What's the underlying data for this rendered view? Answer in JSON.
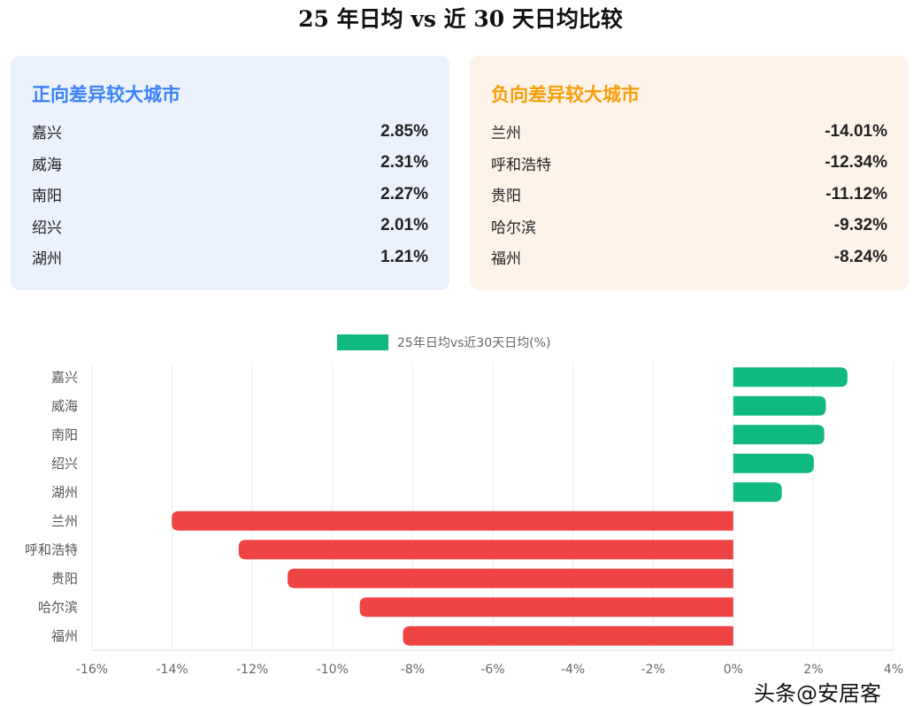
{
  "title": "25 年日均 vs 近 30 天日均比较",
  "positive_card": {
    "title": "正向差异较大城市",
    "items": [
      {
        "city": "嘉兴",
        "value": "2.85%"
      },
      {
        "city": "威海",
        "value": "2.31%"
      },
      {
        "city": "南阳",
        "value": "2.27%"
      },
      {
        "city": "绍兴",
        "value": "2.01%"
      },
      {
        "city": "湖州",
        "value": "1.21%"
      }
    ]
  },
  "negative_card": {
    "title": "负向差异较大城市",
    "items": [
      {
        "city": "兰州",
        "value": "-14.01%"
      },
      {
        "city": "呼和浩特",
        "value": "-12.34%"
      },
      {
        "city": "贵阳",
        "value": "-11.12%"
      },
      {
        "city": "哈尔滨",
        "value": "-9.32%"
      },
      {
        "city": "福州",
        "value": "-8.24%"
      }
    ]
  },
  "chart_data": {
    "type": "bar",
    "orientation": "horizontal",
    "categories": [
      "嘉兴",
      "威海",
      "南阳",
      "绍兴",
      "湖州",
      "兰州",
      "呼和浩特",
      "贵阳",
      "哈尔滨",
      "福州"
    ],
    "series": [
      {
        "name": "25年日均vs近30天日均(%)",
        "values": [
          2.85,
          2.31,
          2.27,
          2.01,
          1.21,
          -14.01,
          -12.34,
          -11.12,
          -9.32,
          -8.24
        ]
      }
    ],
    "xlim": [
      -16,
      4
    ],
    "xticks": [
      "-16%",
      "-14%",
      "-12%",
      "-10%",
      "-8%",
      "-6%",
      "-4%",
      "-2%",
      "0%",
      "2%",
      "4%"
    ],
    "legend": "top-center",
    "grid": true,
    "colors": {
      "positive": "#10b981",
      "negative": "#ef4444"
    }
  },
  "watermark": "头条@安居客"
}
